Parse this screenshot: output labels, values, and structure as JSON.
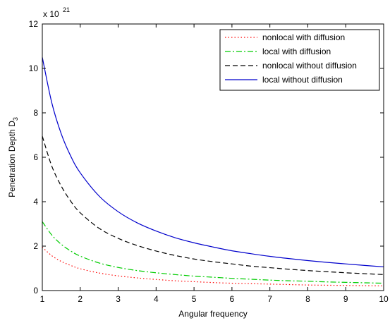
{
  "chart_data": {
    "type": "line",
    "xlabel": "Angular frequency",
    "ylabel": "Penetration Depth D",
    "ylabel_subscript": "3",
    "y_multiplier_base": "x 10",
    "y_multiplier_exp": "21",
    "xlim": [
      1,
      10
    ],
    "ylim": [
      0,
      12
    ],
    "xticks": [
      1,
      2,
      3,
      4,
      5,
      6,
      7,
      8,
      9,
      10
    ],
    "yticks": [
      0,
      2,
      4,
      6,
      8,
      10,
      12
    ],
    "grid": false,
    "legend_position": "top-right",
    "x": [
      1,
      1.25,
      1.5,
      1.75,
      2,
      2.5,
      3,
      3.5,
      4,
      4.5,
      5,
      5.5,
      6,
      6.5,
      7,
      7.5,
      8,
      8.5,
      9,
      9.5,
      10
    ],
    "series": [
      {
        "name": "nonlocal with diffusion",
        "color": "#ff0000",
        "dash": "dotted",
        "values": [
          1.95,
          1.57,
          1.31,
          1.13,
          0.98,
          0.79,
          0.66,
          0.57,
          0.5,
          0.44,
          0.4,
          0.36,
          0.33,
          0.31,
          0.29,
          0.27,
          0.25,
          0.24,
          0.23,
          0.22,
          0.21
        ]
      },
      {
        "name": "local with diffusion",
        "color": "#00cc00",
        "dash": "dashdot",
        "values": [
          3.1,
          2.5,
          2.08,
          1.78,
          1.55,
          1.24,
          1.04,
          0.9,
          0.8,
          0.72,
          0.65,
          0.6,
          0.55,
          0.51,
          0.47,
          0.44,
          0.42,
          0.39,
          0.37,
          0.35,
          0.33
        ]
      },
      {
        "name": "nonlocal without diffusion",
        "color": "#000000",
        "dash": "dashed",
        "values": [
          6.95,
          5.6,
          4.7,
          4.02,
          3.5,
          2.8,
          2.35,
          2.03,
          1.78,
          1.58,
          1.42,
          1.3,
          1.2,
          1.1,
          1.03,
          0.96,
          0.9,
          0.85,
          0.8,
          0.76,
          0.72
        ]
      },
      {
        "name": "local without diffusion",
        "color": "#0000cc",
        "dash": "solid",
        "values": [
          10.5,
          8.45,
          7.05,
          6.05,
          5.3,
          4.25,
          3.55,
          3.05,
          2.68,
          2.38,
          2.15,
          1.96,
          1.79,
          1.66,
          1.54,
          1.44,
          1.35,
          1.27,
          1.2,
          1.13,
          1.07
        ]
      }
    ]
  }
}
